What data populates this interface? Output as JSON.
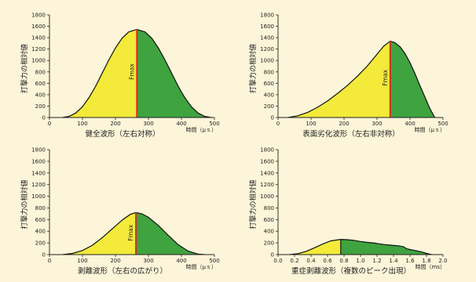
{
  "panel_data": {
    "colors": {
      "background": "#fcf5d9",
      "rise_fill": "#f3ea3a",
      "fall_fill": "#3fa33f",
      "fmax_line": "#d6301f",
      "outline": "#111111"
    }
  },
  "chart_data": [
    {
      "type": "area",
      "caption": "健全波形（左右対称）",
      "ylabel": "打撃力の相対値",
      "xunit": "時間（μｓ）",
      "fmax_label": "Fmax",
      "xlim": [
        0,
        500
      ],
      "ylim": [
        0,
        1800
      ],
      "xticks": [
        0,
        100,
        200,
        300,
        400,
        500
      ],
      "yticks": [
        0,
        200,
        400,
        600,
        800,
        1000,
        1200,
        1400,
        1600,
        1800
      ],
      "peak": [
        265,
        1545
      ],
      "x": [
        40,
        60,
        80,
        100,
        120,
        140,
        160,
        180,
        200,
        220,
        240,
        265,
        290,
        310,
        330,
        350,
        370,
        390,
        410,
        430,
        450,
        470,
        490
      ],
      "y": [
        0,
        20,
        80,
        190,
        350,
        550,
        780,
        1010,
        1220,
        1390,
        1500,
        1545,
        1500,
        1390,
        1220,
        1010,
        780,
        550,
        350,
        190,
        80,
        20,
        0
      ]
    },
    {
      "type": "area",
      "caption": "表面劣化波形（左右非対称）",
      "ylabel": "打撃力の相対値",
      "xunit": "時間（μｓ）",
      "fmax_label": "Fmax",
      "xlim": [
        0,
        500
      ],
      "ylim": [
        0,
        1800
      ],
      "xticks": [
        0,
        100,
        200,
        300,
        400,
        500
      ],
      "yticks": [
        0,
        200,
        400,
        600,
        800,
        1000,
        1200,
        1400,
        1600,
        1800
      ],
      "peak": [
        340,
        1340
      ],
      "x": [
        30,
        60,
        90,
        120,
        150,
        180,
        210,
        240,
        270,
        300,
        320,
        340,
        355,
        370,
        385,
        400,
        415,
        430,
        445,
        460,
        475
      ],
      "y": [
        0,
        30,
        90,
        180,
        290,
        420,
        560,
        720,
        900,
        1110,
        1250,
        1340,
        1310,
        1240,
        1120,
        960,
        770,
        560,
        360,
        160,
        0
      ]
    },
    {
      "type": "area",
      "caption": "剥離波形（左右の広がり）",
      "ylabel": "打撃力の相対値",
      "xunit": "時間（μｓ）",
      "fmax_label": "Fmax",
      "xlim": [
        0,
        500
      ],
      "ylim": [
        0,
        1800
      ],
      "xticks": [
        0,
        100,
        200,
        300,
        400,
        500
      ],
      "yticks": [
        0,
        200,
        400,
        600,
        800,
        1000,
        1200,
        1400,
        1600,
        1800
      ],
      "peak": [
        262,
        720
      ],
      "x": [
        40,
        70,
        100,
        130,
        160,
        190,
        220,
        245,
        262,
        280,
        300,
        330,
        360,
        390,
        420,
        450,
        470
      ],
      "y": [
        0,
        20,
        70,
        160,
        290,
        440,
        590,
        690,
        720,
        700,
        640,
        500,
        330,
        170,
        60,
        10,
        0
      ]
    },
    {
      "type": "area",
      "caption": "重症剥離波形（複数のピーク出現）",
      "ylabel": "打撃力の相対値",
      "xunit": "時間（ms）",
      "xlim": [
        0,
        2.0
      ],
      "ylim": [
        0,
        1800
      ],
      "xticks": [
        0,
        0.2,
        0.4,
        0.6,
        0.8,
        1.0,
        1.2,
        1.4,
        1.6,
        1.8,
        2.0
      ],
      "yticks": [
        0,
        200,
        400,
        600,
        800,
        1000,
        1200,
        1400,
        1600,
        1800
      ],
      "peak": [
        0.76,
        260
      ],
      "x": [
        0.14,
        0.24,
        0.34,
        0.44,
        0.54,
        0.64,
        0.76,
        0.84,
        0.92,
        1.0,
        1.08,
        1.16,
        1.22,
        1.3,
        1.38,
        1.46,
        1.52,
        1.56,
        1.62,
        1.68,
        1.74,
        1.8,
        1.86
      ],
      "y": [
        0,
        15,
        55,
        115,
        180,
        235,
        260,
        255,
        245,
        225,
        210,
        200,
        185,
        170,
        160,
        150,
        135,
        100,
        80,
        65,
        45,
        20,
        0
      ]
    }
  ]
}
